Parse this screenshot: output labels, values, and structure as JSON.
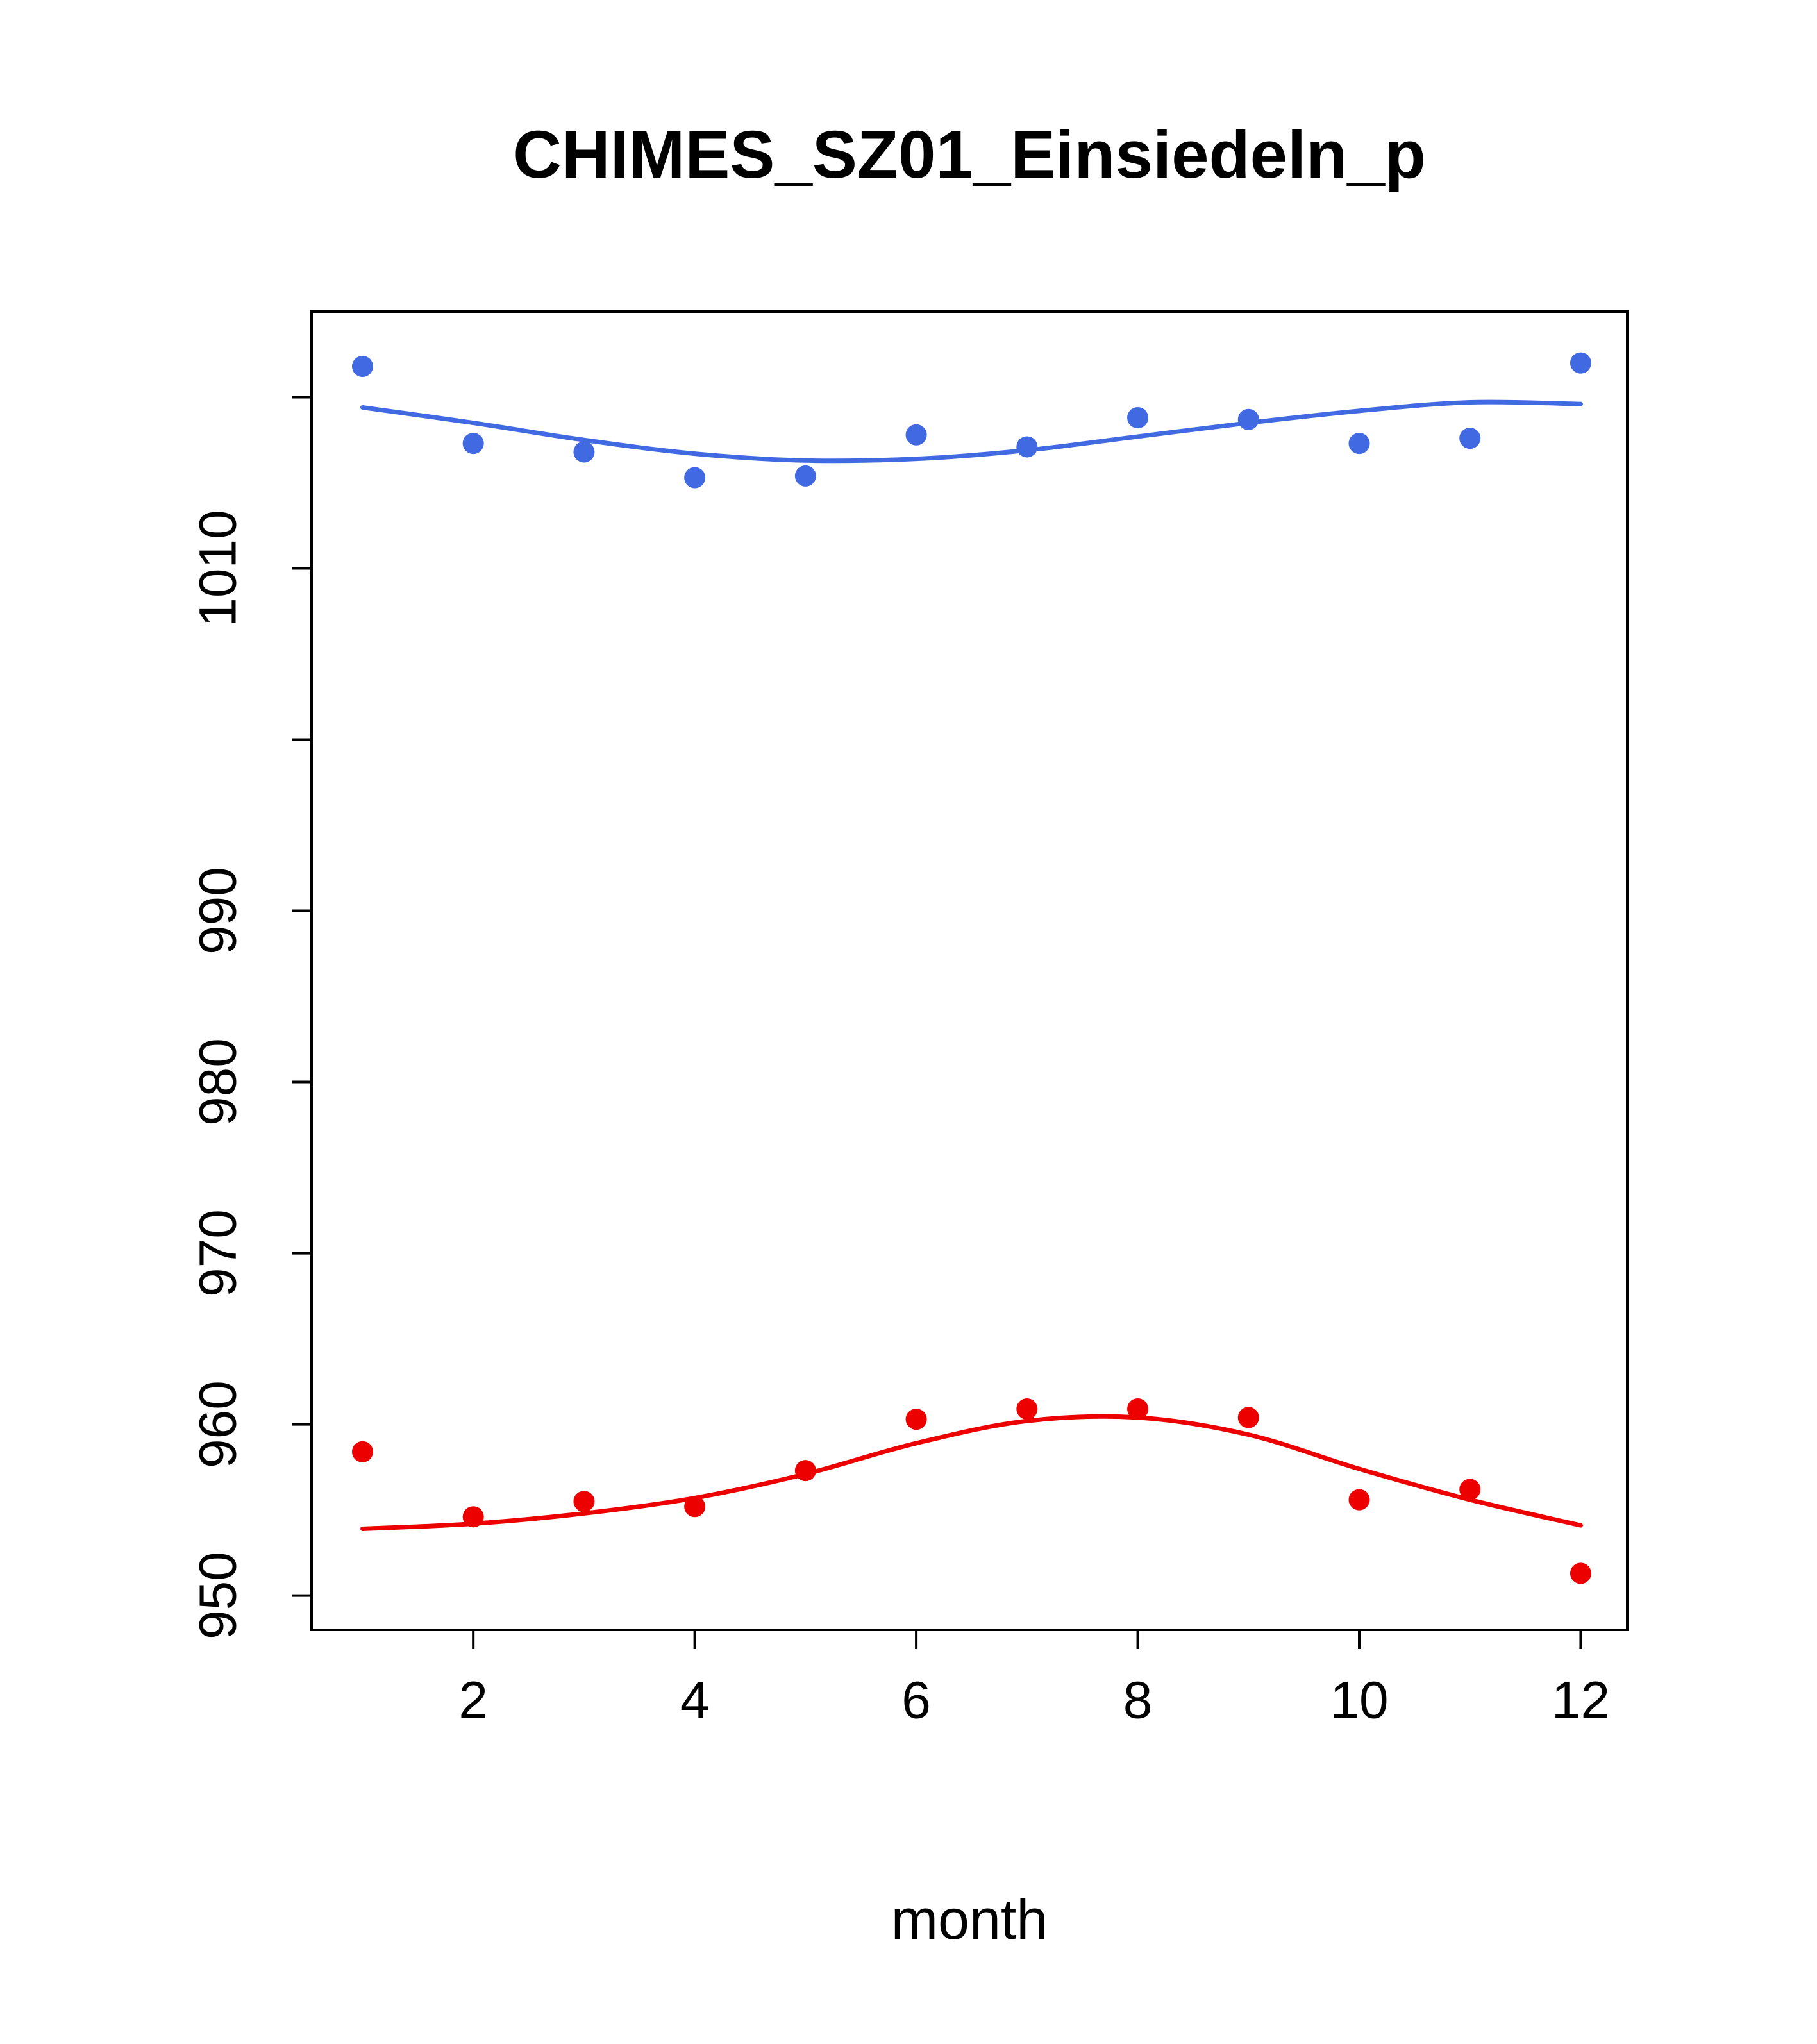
{
  "chart_data": {
    "type": "scatter",
    "title": "CHIMES_SZ01_Einsiedeln_p",
    "xlabel": "month",
    "ylabel": "",
    "x_months": [
      1,
      2,
      3,
      4,
      5,
      6,
      7,
      8,
      9,
      10,
      11,
      12
    ],
    "xlim": [
      0.54,
      12.42
    ],
    "ylim": [
      948,
      1025
    ],
    "x_ticks": [
      2,
      4,
      6,
      8,
      10,
      12
    ],
    "x_tick_labels": [
      "2",
      "4",
      "6",
      "8",
      "10",
      "12"
    ],
    "y_ticks": [
      950,
      960,
      970,
      980,
      990,
      1000,
      1010,
      1020
    ],
    "y_tick_labels": [
      "950",
      "960",
      "970",
      "980",
      "990",
      "",
      "1010",
      ""
    ],
    "grid": "off",
    "legend": "none",
    "colors": {
      "blue_series": "#4169E1",
      "red_series": "#EC0000",
      "axis": "#000000"
    },
    "series": [
      {
        "name": "blue-trend-line",
        "kind": "line",
        "color": "#4169E1",
        "values": [
          1019.4,
          1018.5,
          1017.5,
          1016.7,
          1016.3,
          1016.4,
          1016.9,
          1017.7,
          1018.5,
          1019.2,
          1019.7,
          1019.6
        ]
      },
      {
        "name": "red-trend-line",
        "kind": "line",
        "color": "#EC0000",
        "values": [
          953.9,
          954.2,
          954.8,
          955.7,
          957.1,
          958.9,
          960.2,
          960.4,
          959.4,
          957.4,
          955.6,
          954.1
        ]
      },
      {
        "name": "blue-monthly-points",
        "kind": "points",
        "color": "#4169E1",
        "values": [
          1021.8,
          1017.3,
          1016.8,
          1015.3,
          1015.4,
          1017.8,
          1017.1,
          1018.8,
          1018.7,
          1017.3,
          1017.6,
          1022.0
        ]
      },
      {
        "name": "red-monthly-points",
        "kind": "points",
        "color": "#EC0000",
        "values": [
          958.4,
          954.6,
          955.5,
          955.2,
          957.3,
          960.3,
          960.9,
          960.9,
          960.4,
          955.6,
          956.2,
          951.3
        ]
      }
    ]
  }
}
